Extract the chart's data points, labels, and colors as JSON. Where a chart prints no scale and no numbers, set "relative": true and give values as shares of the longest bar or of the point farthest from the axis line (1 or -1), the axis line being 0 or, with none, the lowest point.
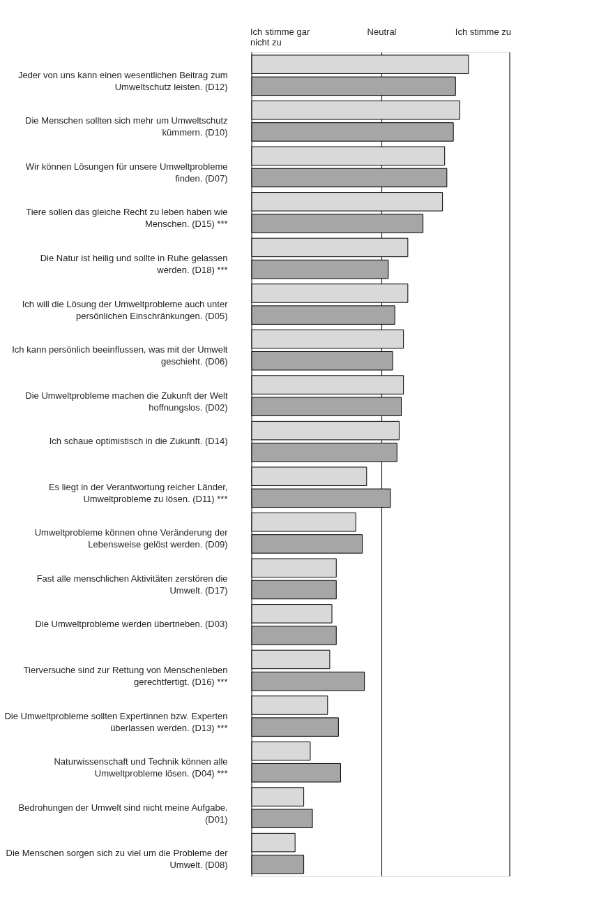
{
  "chart_data": {
    "type": "bar",
    "orientation": "horizontal",
    "relative": true,
    "categories": [
      "Jeder von uns kann einen wesentlichen Beitrag zum Umweltschutz leisten. (D12)",
      "Die Menschen sollten sich mehr um Umweltschutz kümmern. (D10)",
      "Wir können Lösungen für unsere Umweltprobleme finden. (D07)",
      "Tiere sollen das gleiche Recht zu leben haben wie Menschen. (D15) ***",
      "Die Natur ist heilig und sollte in Ruhe gelassen werden. (D18) ***",
      "Ich will die Lösung der Umweltprobleme auch unter persönlichen Einschränkungen. (D05)",
      "Ich kann persönlich beeinflussen, was mit der Umwelt geschieht. (D06)",
      "Die Umweltprobleme machen die Zukunft der Welt hoffnungslos. (D02)",
      "Ich schaue optimistisch in die Zukunft. (D14)",
      "Es liegt in der Verantwortung reicher Länder, Umweltprobleme zu lösen. (D11) ***",
      "Umweltprobleme können ohne Veränderung der Lebensweise gelöst werden. (D09)",
      "Fast alle menschlichen Aktivitäten zerstören die Umwelt. (D17)",
      "Die Umweltprobleme werden übertrieben. (D03)",
      "Tierversuche sind zur Rettung von Menschenleben gerechtfertigt. (D16) ***",
      "Die Umweltprobleme sollten Expertinnen bzw. Experten überlassen werden. (D13) ***",
      "Naturwissenschaft und Technik können alle Umweltprobleme lösen. (D04) ***",
      "Bedrohungen der Umwelt sind nicht meine Aufgabe. (D01)",
      "Die Menschen sorgen sich zu viel um die Probleme der Umwelt. (D08)"
    ],
    "series": [
      {
        "color": "#d9d9d9",
        "values": [
          1,
          0.96,
          0.89,
          0.88,
          0.72,
          0.72,
          0.7,
          0.7,
          0.68,
          0.53,
          0.48,
          0.39,
          0.37,
          0.36,
          0.35,
          0.27,
          0.24,
          0.2
        ]
      },
      {
        "color": "#a6a6a6",
        "values": [
          0.94,
          0.93,
          0.9,
          0.79,
          0.63,
          0.66,
          0.65,
          0.69,
          0.67,
          0.64,
          0.51,
          0.39,
          0.39,
          0.52,
          0.4,
          0.41,
          0.28,
          0.24
        ]
      }
    ],
    "ref_lines": [
      {
        "axis": "x",
        "value": 0,
        "label": "Ich stimme gar nicht zu",
        "color": "#000000"
      },
      {
        "axis": "x",
        "value": 0.6,
        "label": "Neutral",
        "color": "#000000"
      },
      {
        "axis": "x",
        "value": 1.19,
        "label": "Ich stimme zu",
        "color": "#000000"
      }
    ]
  }
}
